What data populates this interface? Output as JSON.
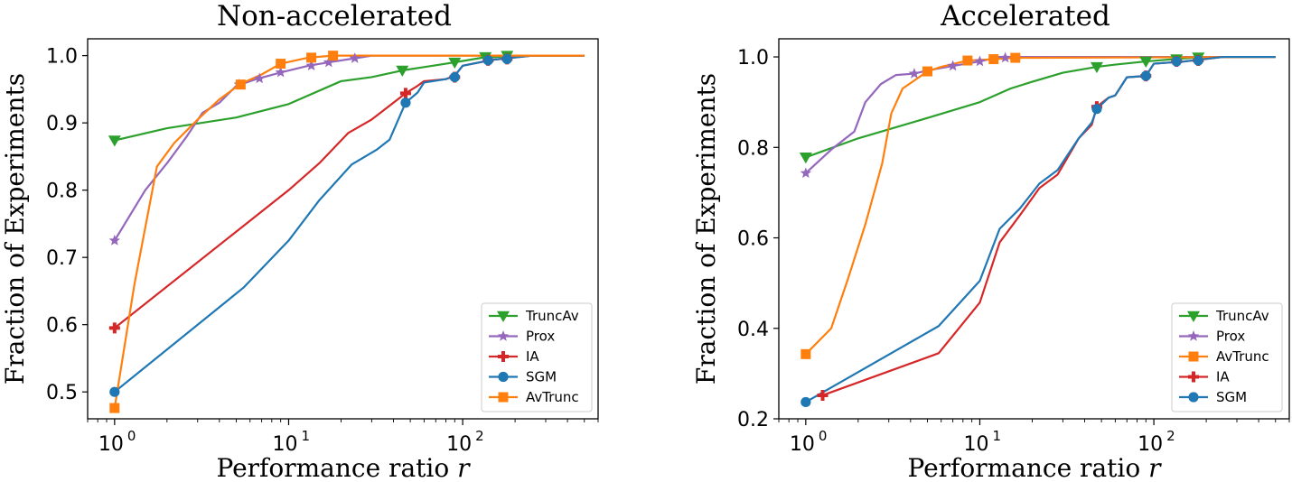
{
  "chart_data": [
    {
      "type": "line",
      "title": "Non-accelerated",
      "xlabel": "Performance ratio",
      "xlabel_var": "r",
      "ylabel": "Fraction of Experiments",
      "xscale": "log",
      "xlim": [
        0.7,
        600
      ],
      "ylim": [
        0.46,
        1.025
      ],
      "xticks": [
        {
          "base": "10",
          "exp": "0",
          "value": 1
        },
        {
          "base": "10",
          "exp": "1",
          "value": 10
        },
        {
          "base": "10",
          "exp": "2",
          "value": 100
        }
      ],
      "yticks": [
        {
          "label": "0.5",
          "value": 0.5
        },
        {
          "label": "0.6",
          "value": 0.6
        },
        {
          "label": "0.7",
          "value": 0.7
        },
        {
          "label": "0.8",
          "value": 0.8
        },
        {
          "label": "0.9",
          "value": 0.9
        },
        {
          "label": "1.0",
          "value": 1.0
        }
      ],
      "legend_position": "lower-right",
      "legend_order": [
        "TruncAv",
        "Prox",
        "IA",
        "SGM",
        "AvTrunc"
      ],
      "series": [
        {
          "name": "TruncAv",
          "color": "#2ca02c",
          "marker": "triangle-down",
          "x": [
            1,
            2,
            5,
            10,
            20,
            30,
            45,
            60,
            90,
            130,
            180,
            220,
            500
          ],
          "y": [
            0.874,
            0.892,
            0.908,
            0.928,
            0.962,
            0.968,
            0.978,
            0.983,
            0.99,
            0.997,
            0.999,
            1.0,
            1.0
          ],
          "markers_x": [
            1,
            45,
            90,
            135,
            180
          ],
          "markers_y": [
            0.874,
            0.978,
            0.99,
            0.998,
            1.0
          ]
        },
        {
          "name": "Prox",
          "color": "#9467bd",
          "marker": "star",
          "x": [
            1,
            1.5,
            2,
            2.6,
            3.2,
            4,
            5,
            6.5,
            9,
            13,
            17,
            24,
            30,
            500
          ],
          "y": [
            0.725,
            0.8,
            0.84,
            0.88,
            0.915,
            0.93,
            0.955,
            0.965,
            0.975,
            0.985,
            0.99,
            0.996,
            1.0,
            1.0
          ],
          "markers_x": [
            1,
            5.2,
            6.8,
            9,
            13.5,
            17,
            24
          ],
          "markers_y": [
            0.725,
            0.957,
            0.966,
            0.975,
            0.985,
            0.99,
            0.996
          ]
        },
        {
          "name": "IA",
          "color": "#d62728",
          "marker": "plus",
          "x": [
            1,
            10,
            15,
            22,
            30,
            47,
            55,
            60,
            80,
            90,
            100,
            150,
            250,
            500
          ],
          "y": [
            0.595,
            0.8,
            0.84,
            0.885,
            0.905,
            0.944,
            0.955,
            0.962,
            0.965,
            0.97,
            0.985,
            0.994,
            1.0,
            1.0
          ],
          "markers_x": [
            1,
            47,
            90,
            140,
            180
          ],
          "markers_y": [
            0.595,
            0.944,
            0.968,
            0.993,
            0.995
          ]
        },
        {
          "name": "SGM",
          "color": "#1f77b4",
          "marker": "circle",
          "x": [
            1,
            5.5,
            10,
            15,
            23,
            32,
            38,
            47,
            55,
            60,
            80,
            90,
            100,
            150,
            250,
            500
          ],
          "y": [
            0.5,
            0.655,
            0.725,
            0.785,
            0.838,
            0.86,
            0.875,
            0.93,
            0.945,
            0.96,
            0.965,
            0.97,
            0.985,
            0.994,
            1.0,
            1.0
          ],
          "markers_x": [
            1,
            47,
            90,
            140,
            180
          ],
          "markers_y": [
            0.5,
            0.93,
            0.968,
            0.993,
            0.995
          ]
        },
        {
          "name": "AvTrunc",
          "color": "#ff7f0e",
          "marker": "square",
          "x": [
            1,
            1.3,
            1.75,
            2.2,
            3,
            4,
            5.3,
            7,
            9,
            13,
            18,
            30,
            500
          ],
          "y": [
            0.476,
            0.66,
            0.835,
            0.87,
            0.905,
            0.935,
            0.958,
            0.972,
            0.988,
            0.997,
            1.0,
            1.0,
            1.0
          ],
          "markers_x": [
            1,
            5.3,
            9,
            13.5,
            18
          ],
          "markers_y": [
            0.476,
            0.957,
            0.988,
            0.997,
            1.0
          ]
        }
      ]
    },
    {
      "type": "line",
      "title": "Accelerated",
      "xlabel": "Performance ratio",
      "xlabel_var": "r",
      "ylabel": "Fraction of Experiments",
      "xscale": "log",
      "xlim": [
        0.7,
        600
      ],
      "ylim": [
        0.2,
        1.04
      ],
      "xticks": [
        {
          "base": "10",
          "exp": "0",
          "value": 1
        },
        {
          "base": "10",
          "exp": "1",
          "value": 10
        },
        {
          "base": "10",
          "exp": "2",
          "value": 100
        }
      ],
      "yticks": [
        {
          "label": "0.2",
          "value": 0.2
        },
        {
          "label": "0.4",
          "value": 0.4
        },
        {
          "label": "0.6",
          "value": 0.6
        },
        {
          "label": "0.8",
          "value": 0.8
        },
        {
          "label": "1.0",
          "value": 1.0
        }
      ],
      "legend_position": "lower-right",
      "legend_order": [
        "TruncAv",
        "Prox",
        "AvTrunc",
        "IA",
        "SGM"
      ],
      "series": [
        {
          "name": "TruncAv",
          "color": "#2ca02c",
          "marker": "triangle-down",
          "x": [
            1,
            2,
            5,
            10,
            15,
            20,
            30,
            47,
            60,
            90,
            130,
            180,
            220,
            500
          ],
          "y": [
            0.778,
            0.82,
            0.865,
            0.9,
            0.93,
            0.945,
            0.965,
            0.978,
            0.983,
            0.99,
            0.995,
            0.999,
            1.0,
            1.0
          ],
          "markers_x": [
            1,
            47,
            90,
            135,
            180
          ],
          "markers_y": [
            0.778,
            0.978,
            0.99,
            0.995,
            0.999
          ]
        },
        {
          "name": "Prox",
          "color": "#9467bd",
          "marker": "star",
          "x": [
            1,
            1.4,
            1.9,
            2.2,
            2.7,
            3.3,
            4.2,
            5,
            7,
            10,
            13,
            500
          ],
          "y": [
            0.743,
            0.795,
            0.835,
            0.9,
            0.94,
            0.96,
            0.963,
            0.97,
            0.98,
            0.99,
            1.0,
            1.0
          ],
          "markers_x": [
            1,
            4.2,
            7,
            10,
            14
          ],
          "markers_y": [
            0.743,
            0.963,
            0.98,
            0.99,
            0.998
          ]
        },
        {
          "name": "AvTrunc",
          "color": "#ff7f0e",
          "marker": "square",
          "x": [
            1,
            1.4,
            1.75,
            2.2,
            2.75,
            3.1,
            3.6,
            5,
            6,
            8.5,
            12,
            16,
            500
          ],
          "y": [
            0.343,
            0.4,
            0.51,
            0.63,
            0.765,
            0.875,
            0.93,
            0.968,
            0.978,
            0.992,
            0.995,
            0.998,
            1.0
          ],
          "markers_x": [
            1,
            5,
            8.5,
            12,
            16
          ],
          "markers_y": [
            0.343,
            0.968,
            0.992,
            0.995,
            0.998
          ]
        },
        {
          "name": "IA",
          "color": "#d62728",
          "marker": "plus",
          "x": [
            1.25,
            5.8,
            10,
            13,
            17,
            22,
            28,
            37,
            44,
            47,
            55,
            60,
            70,
            90,
            100,
            150,
            250,
            500
          ],
          "y": [
            0.252,
            0.345,
            0.457,
            0.59,
            0.65,
            0.71,
            0.74,
            0.82,
            0.85,
            0.89,
            0.91,
            0.915,
            0.955,
            0.958,
            0.985,
            0.99,
            1.0,
            1.0
          ],
          "markers_x": [
            1.25,
            47,
            90,
            135,
            180
          ],
          "markers_y": [
            0.252,
            0.89,
            0.958,
            0.99,
            0.992
          ]
        },
        {
          "name": "SGM",
          "color": "#1f77b4",
          "marker": "circle",
          "x": [
            1,
            5.8,
            10,
            13,
            17,
            22,
            28,
            37,
            44,
            47,
            55,
            60,
            70,
            90,
            100,
            150,
            250,
            500
          ],
          "y": [
            0.237,
            0.405,
            0.505,
            0.62,
            0.665,
            0.72,
            0.75,
            0.82,
            0.855,
            0.885,
            0.91,
            0.915,
            0.955,
            0.958,
            0.985,
            0.99,
            1.0,
            1.0
          ],
          "markers_x": [
            1,
            47,
            90,
            135,
            180
          ],
          "markers_y": [
            0.237,
            0.885,
            0.958,
            0.99,
            0.992
          ]
        }
      ]
    }
  ]
}
